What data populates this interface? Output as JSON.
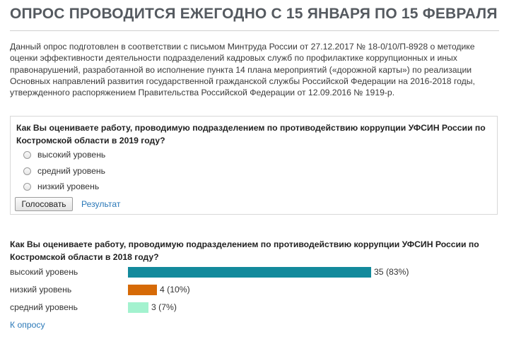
{
  "header": {
    "title": "ОПРОС ПРОВОДИТСЯ ЕЖЕГОДНО С 15 ЯНВАРЯ ПО 15 ФЕВРАЛЯ"
  },
  "intro": {
    "text": "Данный опрос подготовлен в соответствии с письмом Минтруда России от 27.12.2017 № 18-0/10/П-8928 о методике оценки эффективности деятельности подразделений кадровых служб по профилактике коррупционных и иных правонарушений, разработанной во исполнение пункта 14 плана мероприятий («дорожной карты») по реализации Основных направлений развития государственной гражданской службы Российской Федерации на 2016-2018 годы, утвержденного распоряжением Правительства Российской Федерации от 12.09.2016 № 1919-р."
  },
  "poll_2019": {
    "question": "Как Вы оцениваете работу, проводимую подразделением по противодействию коррупции УФСИН России по Костромской области в 2019 году?",
    "options": [
      "высокий уровень",
      "средний уровень",
      "низкий уровень"
    ],
    "vote_label": "Голосовать",
    "results_link": "Результат"
  },
  "results_2018": {
    "question": "Как Вы оцениваете работу, проводимую подразделением по противодействию коррупции УФСИН России по Костромской области в 2018 году?",
    "items": [
      {
        "label": "высокий уровень",
        "count": 35,
        "percent": 83,
        "display": "35 (83%)",
        "color": "#138a9c"
      },
      {
        "label": "низкий уровень",
        "count": 4,
        "percent": 10,
        "display": "4 (10%)",
        "color": "#d66a07"
      },
      {
        "label": "средний уровень",
        "count": 3,
        "percent": 7,
        "display": "3 (7%)",
        "color": "#a3f2cf"
      }
    ],
    "back_link": "К опросу"
  }
}
